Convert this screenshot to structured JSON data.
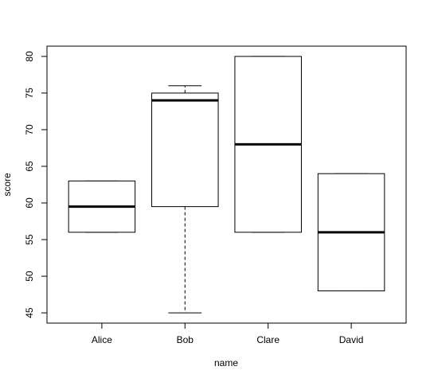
{
  "chart_data": {
    "type": "box",
    "x_label": "name",
    "y_label": "score",
    "categories": [
      "Alice",
      "Bob",
      "Clare",
      "David"
    ],
    "stats": [
      {
        "whislo": 56,
        "q1": 56,
        "median": 59.5,
        "q3": 63,
        "whishi": 63
      },
      {
        "whislo": 45,
        "q1": 59.5,
        "median": 74,
        "q3": 75,
        "whishi": 76
      },
      {
        "whislo": 56,
        "q1": 56,
        "median": 68,
        "q3": 80,
        "whishi": 80
      },
      {
        "whislo": 48,
        "q1": 48,
        "median": 56,
        "q3": 64,
        "whishi": 64
      }
    ],
    "color": "#000000",
    "fill": "#ffffff",
    "ylim": [
      43.6,
      81.4
    ],
    "yticks": [
      45,
      50,
      55,
      60,
      65,
      70,
      75,
      80
    ]
  }
}
